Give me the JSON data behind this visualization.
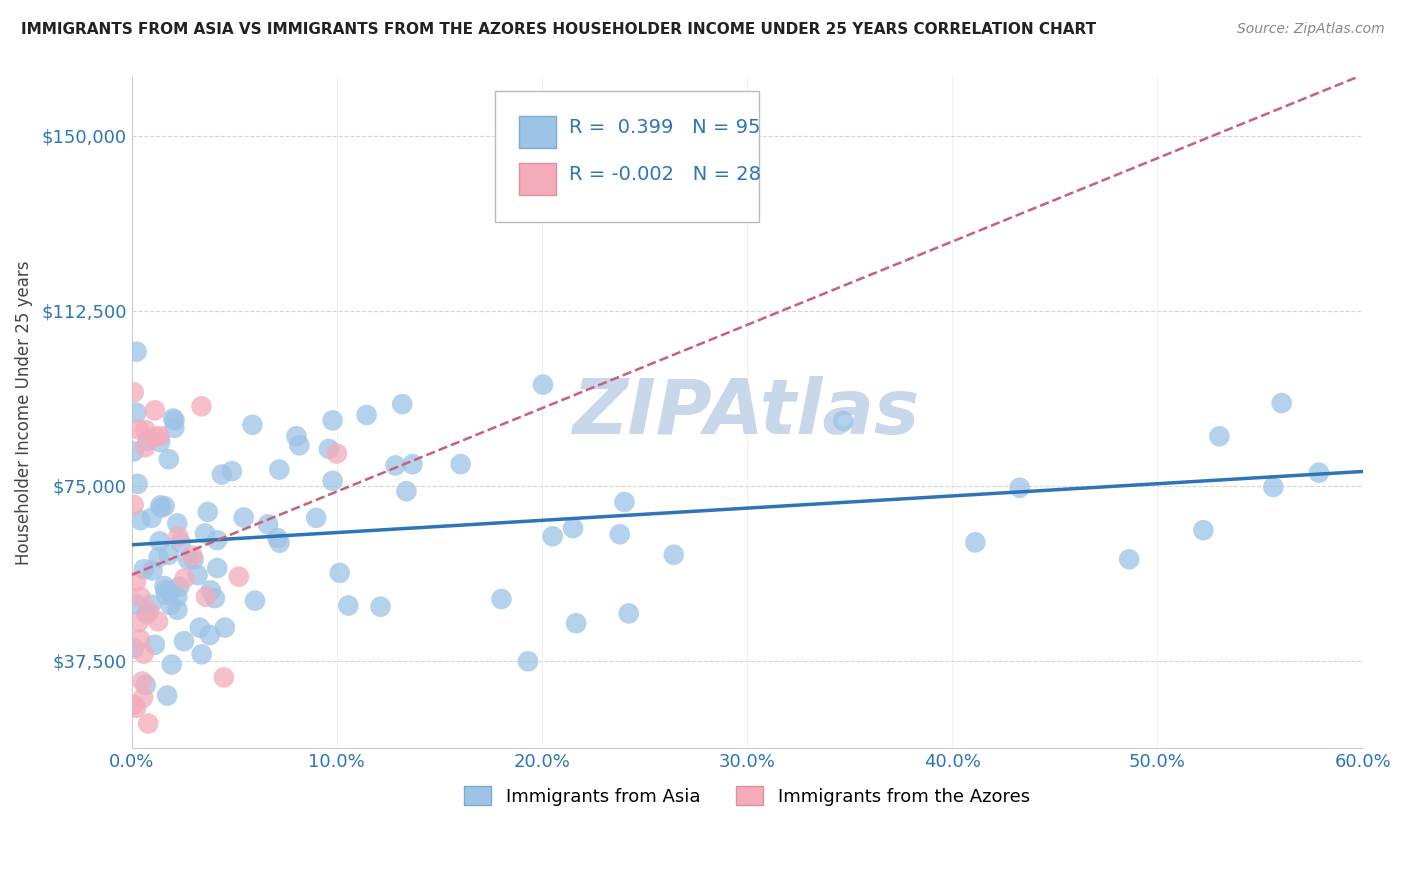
{
  "title": "IMMIGRANTS FROM ASIA VS IMMIGRANTS FROM THE AZORES HOUSEHOLDER INCOME UNDER 25 YEARS CORRELATION CHART",
  "source": "Source: ZipAtlas.com",
  "ylabel": "Householder Income Under 25 years",
  "xlim": [
    0.0,
    0.6
  ],
  "ylim": [
    18750,
    162500
  ],
  "yticks": [
    37500,
    75000,
    112500,
    150000
  ],
  "ytick_labels": [
    "$37,500",
    "$75,000",
    "$112,500",
    "$150,000"
  ],
  "xtick_positions": [
    0.0,
    0.1,
    0.2,
    0.3,
    0.4,
    0.5,
    0.6
  ],
  "xtick_labels": [
    "0.0%",
    "10.0%",
    "20.0%",
    "30.0%",
    "40.0%",
    "50.0%",
    "60.0%"
  ],
  "legend_asia_R": "0.399",
  "legend_asia_N": "95",
  "legend_azores_R": "-0.002",
  "legend_azores_N": "28",
  "color_asia": "#9DC3E6",
  "color_azores": "#F4ABBA",
  "color_trendline_asia": "#2E75B6",
  "color_trendline_azores": "#C9607A",
  "watermark": "ZIPAtlas",
  "watermark_color": "#C8D8EA",
  "grid_color": "#CCCCCC"
}
